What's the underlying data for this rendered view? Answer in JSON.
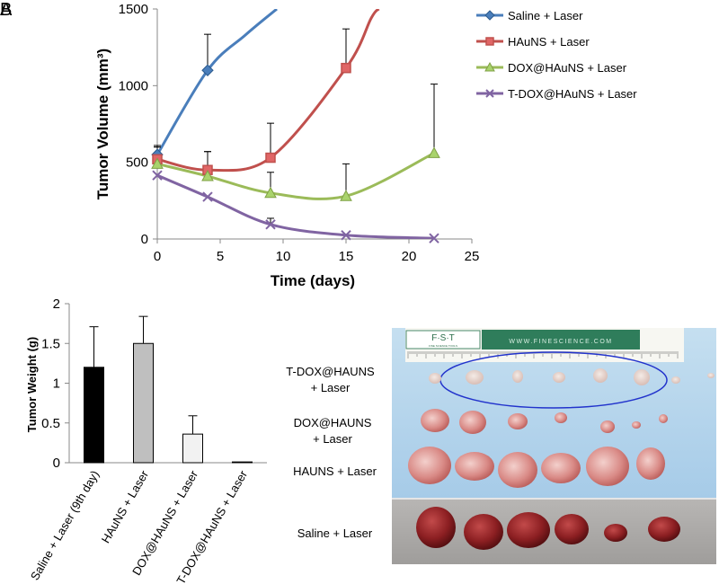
{
  "panels": {
    "a": "A",
    "b": "B"
  },
  "chart_data": [
    {
      "type": "line",
      "panel": "A",
      "xlabel": "Time (days)",
      "ylabel": "Tumor Volume (mm³)",
      "xlim": [
        0,
        25
      ],
      "ylim": [
        0,
        1500
      ],
      "xticks": [
        0,
        5,
        10,
        15,
        20,
        25
      ],
      "yticks": [
        0,
        500,
        1000,
        1500
      ],
      "legend_position": "right",
      "series": [
        {
          "name": "Saline + Laser",
          "color": "#4a7ebb",
          "marker": "diamond",
          "x": [
            0,
            4
          ],
          "values": [
            550,
            1100
          ],
          "errors": [
            60,
            235
          ],
          "curve_ext": [
            [
              7,
              1330
            ],
            [
              9.5,
              1500
            ]
          ]
        },
        {
          "name": "HAuNS + Laser",
          "color": "#c0504d",
          "marker": "square",
          "x": [
            0,
            4,
            9,
            15
          ],
          "values": [
            520,
            450,
            530,
            1115
          ],
          "errors": [
            80,
            120,
            225,
            255
          ],
          "curve_ext": [
            [
              17,
              1440
            ],
            [
              17.6,
              1500
            ]
          ]
        },
        {
          "name": "DOX@HAuNS + Laser",
          "color": "#9bbb59",
          "marker": "triangle",
          "x": [
            0,
            4,
            9,
            15,
            22
          ],
          "values": [
            490,
            410,
            300,
            280,
            560
          ],
          "errors": [
            110,
            160,
            135,
            210,
            450
          ],
          "curve_ext": []
        },
        {
          "name": "T-DOX@HAuNS + Laser",
          "color": "#8064a2",
          "marker": "x",
          "x": [
            0,
            4,
            9,
            15,
            22
          ],
          "values": [
            415,
            275,
            95,
            25,
            5
          ],
          "errors": [
            0,
            0,
            40,
            0,
            0
          ],
          "curve_ext": []
        }
      ]
    },
    {
      "type": "bar",
      "panel": "B",
      "ylabel": "Tumor Weight (g)",
      "ylim": [
        0,
        2
      ],
      "yticks": [
        "0",
        "0.5",
        "1",
        "1.5",
        "2"
      ],
      "categories": [
        "Saline + Laser (9th day)",
        "HAuNS + Laser",
        "DOX@HAuNS + Laser",
        "T-DOX@HAuNS + Laser"
      ],
      "values": [
        1.2,
        1.5,
        0.36,
        0.01
      ],
      "errors": [
        0.51,
        0.34,
        0.23,
        0
      ],
      "colors": [
        "#000000",
        "#bfbfbf",
        "#f2f2f2",
        "#ffffff"
      ]
    }
  ],
  "photo": {
    "group_labels": [
      [
        "T-DOX@HAUNS",
        "+ Laser"
      ],
      [
        "DOX@HAUNS",
        "+ Laser"
      ],
      [
        "HAUNS + Laser"
      ],
      [
        "Saline + Laser"
      ]
    ],
    "ruler_text": "WWW.FINESCIENCE.COM",
    "logo_text": "F·S·T",
    "logo_subtext": "FINE SCIENCE TOOLS"
  }
}
